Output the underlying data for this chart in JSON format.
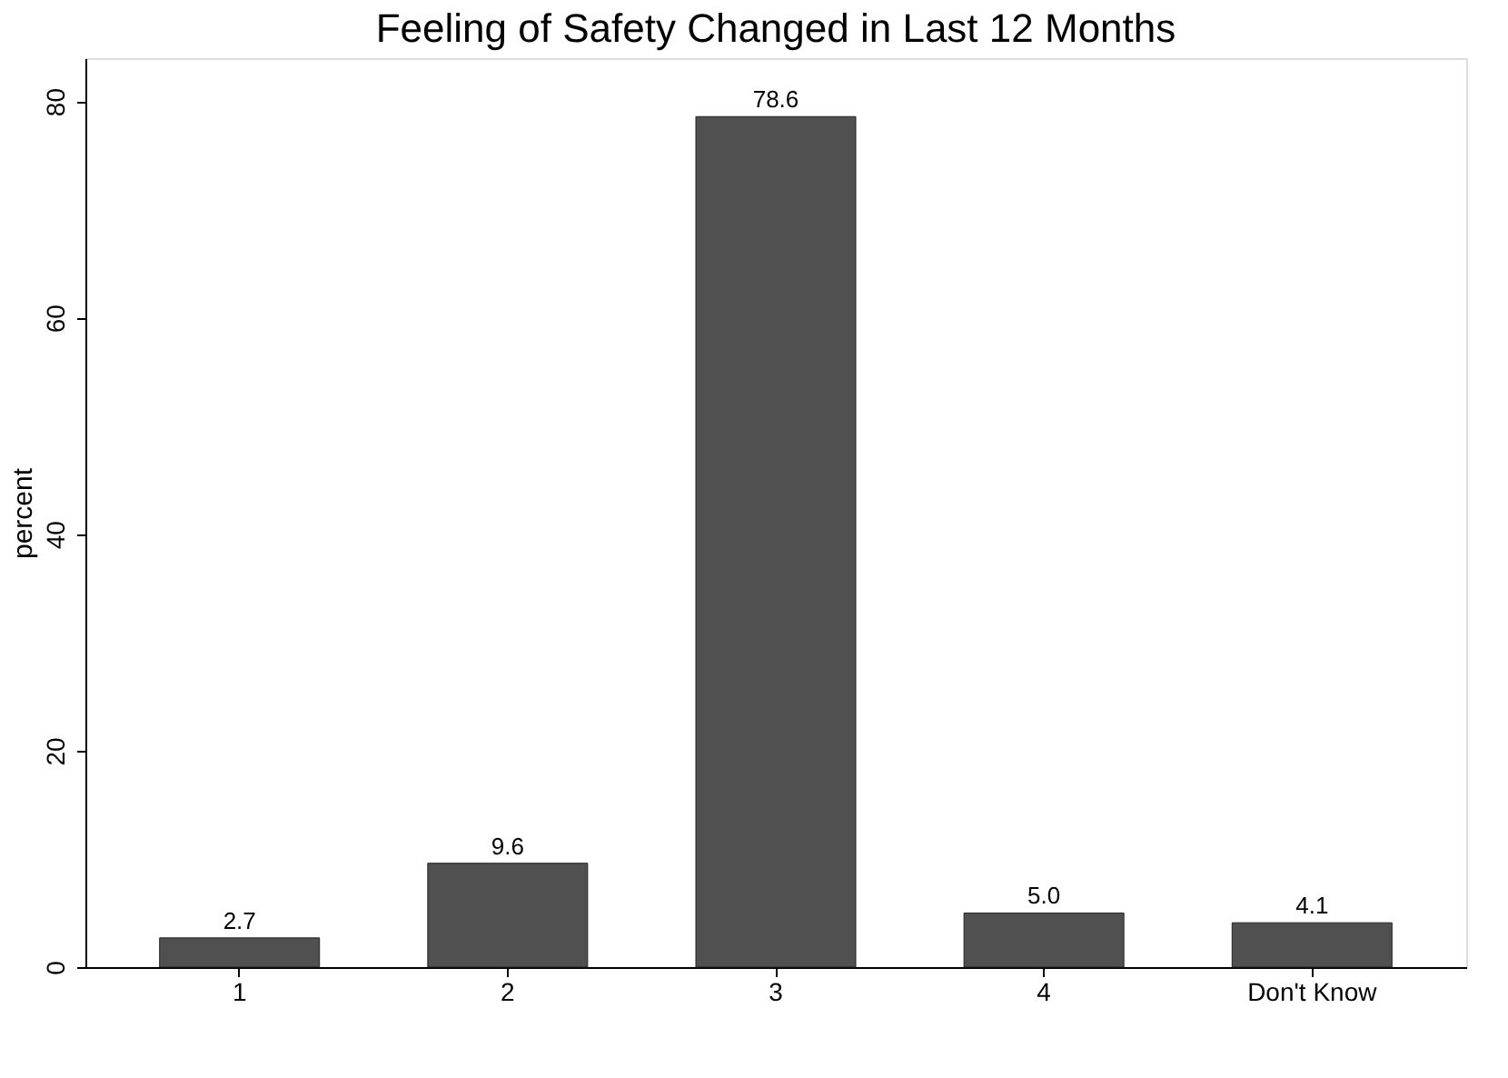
{
  "chart_data": {
    "type": "bar",
    "title": "Feeling of Safety Changed in Last 12 Months",
    "ylabel": "percent",
    "categories": [
      "1",
      "2",
      "3",
      "4",
      "Don't Know"
    ],
    "values": [
      2.7,
      9.6,
      78.6,
      5.0,
      4.1
    ],
    "color": "#505050",
    "value_labels": [
      "2.7",
      "9.6",
      "78.6",
      "5.0",
      "4.1"
    ],
    "ylim": [
      0,
      84
    ],
    "yticks": [
      0,
      20,
      40,
      60,
      80
    ],
    "grid": false
  }
}
